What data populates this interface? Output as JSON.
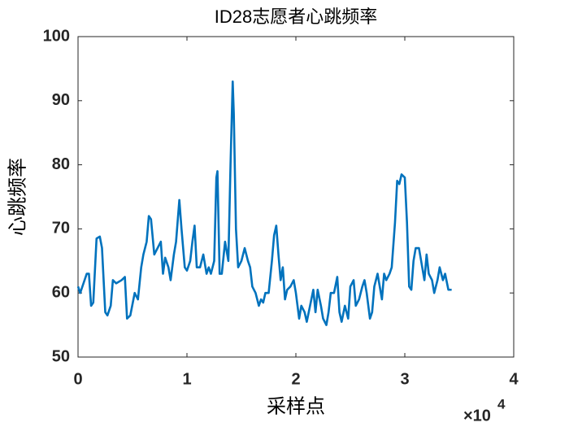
{
  "chart_data": {
    "type": "line",
    "title": "ID28志愿者心跳频率",
    "x_label": "采样点",
    "y_label": "心跳频率",
    "x_exponent_base": "×10",
    "x_exponent_power": "4",
    "xlim": [
      0,
      4
    ],
    "xticks": [
      0,
      1,
      2,
      3,
      4
    ],
    "ylim": [
      50,
      100
    ],
    "yticks": [
      50,
      60,
      70,
      80,
      90,
      100
    ],
    "grid": false,
    "series": [
      {
        "name": "心跳频率",
        "color": "#0072bd",
        "x": [
          0.0,
          0.02,
          0.05,
          0.08,
          0.1,
          0.12,
          0.14,
          0.17,
          0.2,
          0.22,
          0.25,
          0.27,
          0.3,
          0.32,
          0.35,
          0.4,
          0.43,
          0.45,
          0.48,
          0.52,
          0.55,
          0.58,
          0.6,
          0.63,
          0.65,
          0.67,
          0.7,
          0.73,
          0.76,
          0.78,
          0.8,
          0.83,
          0.85,
          0.88,
          0.9,
          0.93,
          0.95,
          0.98,
          1.0,
          1.03,
          1.05,
          1.07,
          1.09,
          1.12,
          1.15,
          1.18,
          1.2,
          1.22,
          1.25,
          1.27,
          1.28,
          1.3,
          1.32,
          1.35,
          1.38,
          1.4,
          1.42,
          1.43,
          1.45,
          1.47,
          1.5,
          1.53,
          1.56,
          1.58,
          1.6,
          1.63,
          1.66,
          1.68,
          1.7,
          1.72,
          1.75,
          1.78,
          1.8,
          1.82,
          1.84,
          1.86,
          1.88,
          1.9,
          1.92,
          1.95,
          1.98,
          2.0,
          2.03,
          2.05,
          2.08,
          2.1,
          2.13,
          2.16,
          2.18,
          2.2,
          2.23,
          2.25,
          2.28,
          2.3,
          2.32,
          2.35,
          2.38,
          2.4,
          2.42,
          2.45,
          2.48,
          2.5,
          2.53,
          2.55,
          2.58,
          2.61,
          2.63,
          2.65,
          2.68,
          2.7,
          2.72,
          2.75,
          2.77,
          2.79,
          2.81,
          2.83,
          2.86,
          2.88,
          2.91,
          2.93,
          2.95,
          2.97,
          3.0,
          3.02,
          3.04,
          3.06,
          3.08,
          3.1,
          3.13,
          3.15,
          3.18,
          3.2,
          3.22,
          3.25,
          3.27,
          3.3,
          3.32,
          3.35,
          3.37,
          3.4,
          3.43
        ],
        "values": [
          61,
          60,
          61.5,
          63,
          63,
          58,
          58.5,
          68.5,
          68.8,
          67,
          57,
          56.5,
          58,
          62,
          61.5,
          62,
          62.5,
          56,
          56.5,
          60,
          59,
          64,
          66,
          68,
          72,
          71.5,
          66,
          67,
          68,
          63,
          65.5,
          64,
          62,
          66,
          68,
          74.5,
          70,
          64,
          63.5,
          65,
          68,
          70.5,
          64,
          64,
          66,
          63,
          64,
          63,
          65,
          78,
          79,
          63,
          63,
          68,
          65,
          80,
          93,
          88,
          70,
          64,
          65,
          67,
          65,
          64,
          61,
          60,
          58,
          59,
          58.5,
          60,
          60,
          65,
          69,
          70.5,
          66,
          62,
          64,
          59,
          60.5,
          61,
          62,
          60,
          56,
          58,
          57,
          55.5,
          58,
          60.5,
          57,
          60.5,
          58,
          56,
          55,
          57,
          60,
          60,
          62.5,
          57,
          55.5,
          58,
          56,
          61,
          62,
          58,
          59,
          61,
          62,
          60,
          56,
          57,
          61,
          63,
          61,
          59,
          63,
          62,
          63,
          64,
          71,
          77.5,
          77,
          78.5,
          78,
          71,
          61,
          60.5,
          65,
          67,
          67,
          65,
          62,
          66,
          63,
          62,
          60,
          62,
          64,
          62,
          63,
          60.5,
          60.5
        ]
      }
    ]
  }
}
